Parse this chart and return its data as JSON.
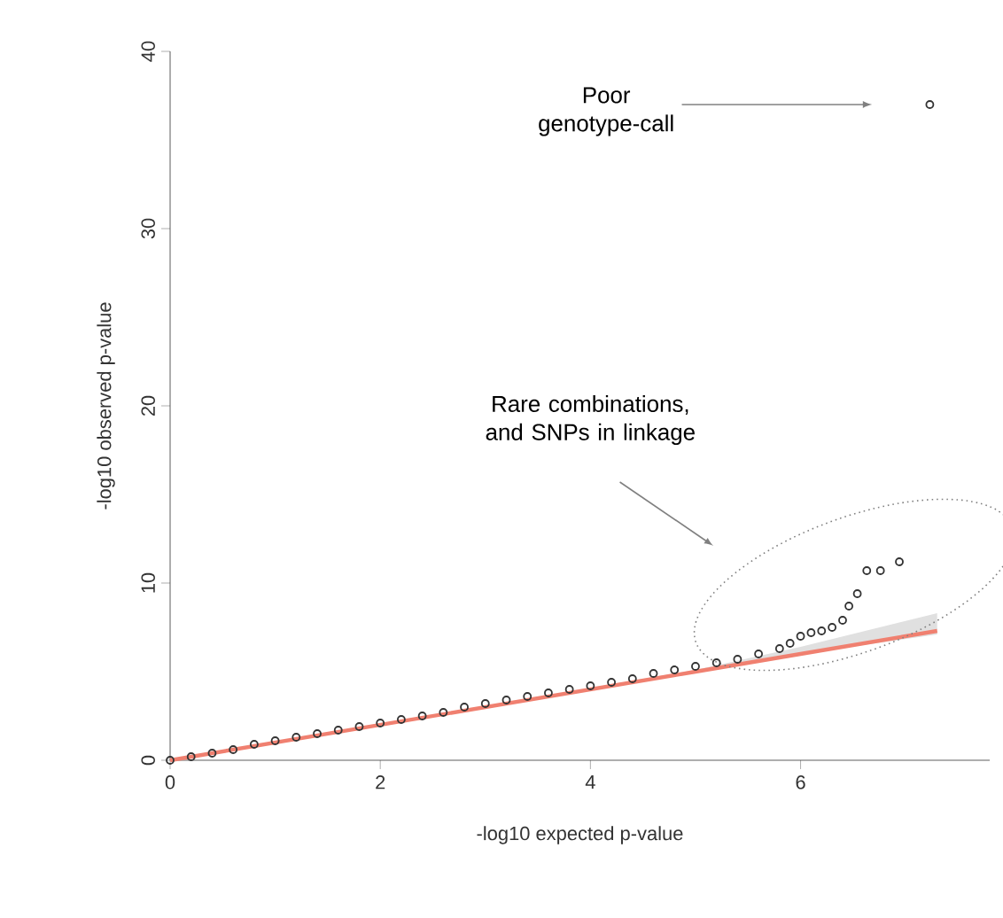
{
  "chart_data": {
    "type": "scatter",
    "xlabel": "-log10 expected p-value",
    "ylabel": "-log10 observed p-value",
    "xlim": [
      0,
      7.8
    ],
    "ylim": [
      0,
      40
    ],
    "xticks": [
      0,
      2,
      4,
      6
    ],
    "yticks": [
      0,
      10,
      20,
      30,
      40
    ],
    "grid": false,
    "series": [
      {
        "type": "line",
        "color": "#f08070",
        "x": [
          0,
          5,
          6,
          7.3
        ],
        "values": [
          0,
          5,
          6,
          7.3
        ],
        "lower": [
          0,
          5,
          6,
          7.1
        ],
        "upper": [
          0,
          5.1,
          6.4,
          8.3
        ]
      },
      {
        "marker": "circle",
        "color": "#333333",
        "x": [
          0,
          0.2,
          0.4,
          0.6,
          0.8,
          1.0,
          1.2,
          1.4,
          1.6,
          1.8,
          2.0,
          2.2,
          2.4,
          2.6,
          2.8,
          3.0,
          3.2,
          3.4,
          3.6,
          3.8,
          4.0,
          4.2,
          4.4,
          4.6,
          4.8,
          5.0,
          5.2,
          5.4,
          5.6,
          5.8,
          5.9,
          6.0,
          6.1,
          6.2,
          6.3,
          6.4,
          6.46,
          6.54,
          6.63,
          6.76,
          6.94,
          7.23
        ],
        "values": [
          0,
          0.2,
          0.4,
          0.6,
          0.9,
          1.1,
          1.3,
          1.5,
          1.7,
          1.9,
          2.1,
          2.3,
          2.5,
          2.7,
          3.0,
          3.2,
          3.4,
          3.6,
          3.8,
          4.0,
          4.2,
          4.4,
          4.6,
          4.9,
          5.1,
          5.3,
          5.5,
          5.7,
          6.0,
          6.3,
          6.6,
          7.0,
          7.2,
          7.3,
          7.5,
          7.9,
          8.7,
          9.4,
          10.7,
          10.7,
          11.2,
          37.0
        ]
      }
    ],
    "annotations": [
      "Poor genotype-call",
      "Rare combinations, and SNPs in linkage"
    ]
  }
}
